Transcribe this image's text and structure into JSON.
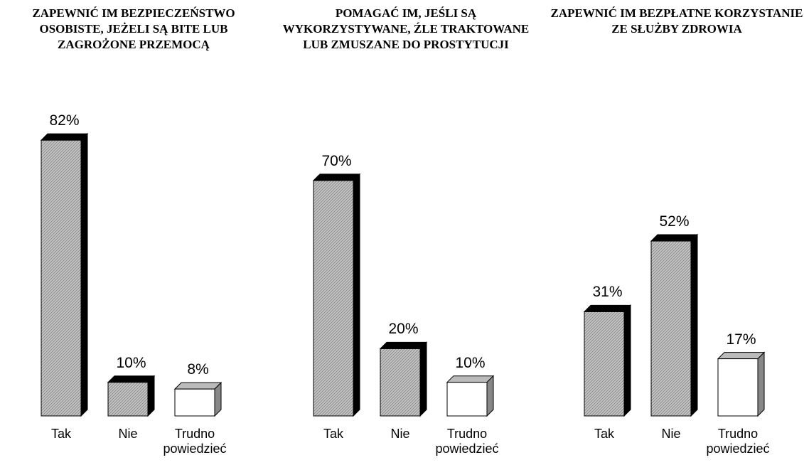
{
  "chart_data": [
    {
      "type": "bar",
      "title": "ZAPEWNIĆ IM BEZPIECZEŃSTWO OSOBISTE, JEŻELI SĄ BITE LUB ZAGROŻONE PRZEMOCĄ",
      "categories": [
        "Tak",
        "Nie",
        "Trudno powiedzieć"
      ],
      "values": [
        82,
        10,
        8
      ],
      "value_labels": [
        "82%",
        "10%",
        "8%"
      ],
      "colors": [
        "#c4c4c4",
        "#c4c4c4",
        "#ffffff"
      ]
    },
    {
      "type": "bar",
      "title": "POMAGAĆ IM, JEŚLI SĄ WYKORZYSTYWANE, ŹLE TRAKTOWANE LUB ZMUSZANE DO PROSTYTUCJI",
      "categories": [
        "Tak",
        "Nie",
        "Trudno powiedzieć"
      ],
      "values": [
        70,
        20,
        10
      ],
      "value_labels": [
        "70%",
        "20%",
        "10%"
      ],
      "colors": [
        "#c4c4c4",
        "#c4c4c4",
        "#ffffff"
      ]
    },
    {
      "type": "bar",
      "title": "ZAPEWNIĆ IM BEZPŁATNE KORZYSTANIE ZE SŁUŻBY ZDROWIA",
      "categories": [
        "Tak",
        "Nie",
        "Trudno powiedzieć"
      ],
      "values": [
        31,
        52,
        17
      ],
      "value_labels": [
        "31%",
        "52%",
        "17%"
      ],
      "colors": [
        "#c4c4c4",
        "#c4c4c4",
        "#ffffff"
      ]
    }
  ]
}
